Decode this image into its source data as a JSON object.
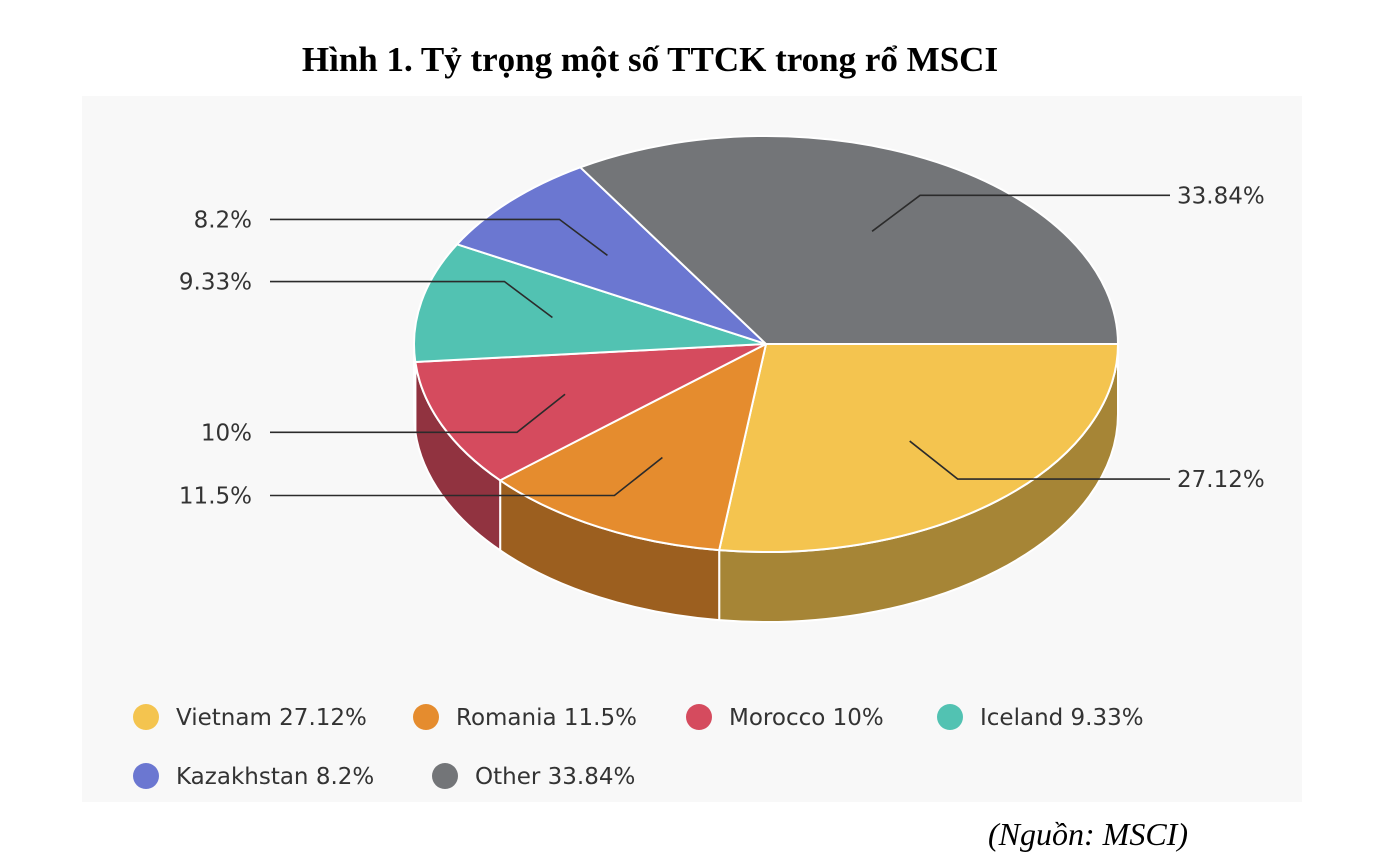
{
  "title": "Hình 1. Tỷ trọng một số TTCK trong rổ MSCI",
  "source": "(Nguồn: MSCI)",
  "chart_data": {
    "type": "pie",
    "categories": [
      "Vietnam",
      "Romania",
      "Morocco",
      "Iceland",
      "Kazakhstan",
      "Other"
    ],
    "values": [
      27.12,
      11.5,
      10,
      9.33,
      8.2,
      33.84
    ],
    "value_labels": [
      "27.12%",
      "11.5%",
      "10%",
      "9.33%",
      "8.2%",
      "33.84%"
    ],
    "legend_labels": [
      "Vietnam 27.12%",
      "Romania 11.5%",
      "Morocco 10%",
      "Iceland 9.33%",
      "Kazakhstan 8.2%",
      "Other 33.84%"
    ],
    "colors": [
      "#f4c44f",
      "#e58c2e",
      "#d54b5e",
      "#52c2b2",
      "#6b77d1",
      "#737578"
    ],
    "style": "3d",
    "legend_position": "bottom"
  }
}
